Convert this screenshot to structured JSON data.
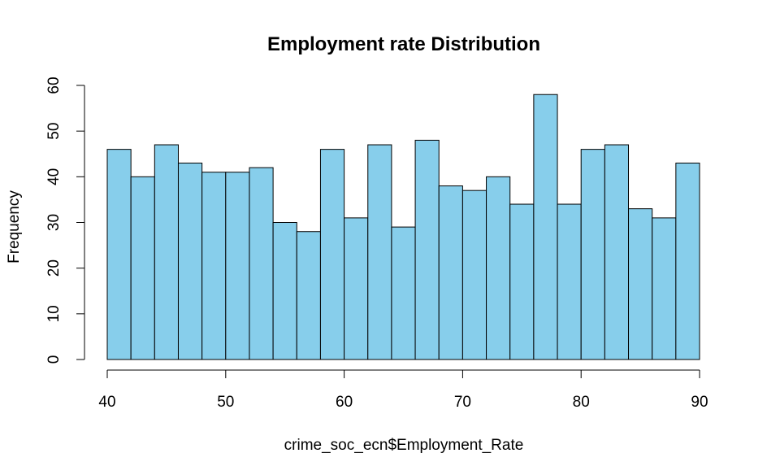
{
  "chart_data": {
    "type": "bar",
    "subtype": "histogram",
    "title": "Employment rate Distribution",
    "xlabel": "crime_soc_ecn$Employment_Rate",
    "ylabel": "Frequency",
    "bin_edges": [
      40,
      42,
      44,
      46,
      48,
      50,
      52,
      54,
      56,
      58,
      60,
      62,
      64,
      66,
      68,
      70,
      72,
      74,
      76,
      78,
      80,
      82,
      84,
      86,
      88,
      90
    ],
    "values": [
      46,
      40,
      47,
      43,
      41,
      41,
      42,
      30,
      28,
      46,
      31,
      47,
      29,
      48,
      38,
      37,
      40,
      34,
      58,
      34,
      46,
      47,
      33,
      31,
      43
    ],
    "xlim": [
      40,
      90
    ],
    "ylim": [
      0,
      60
    ],
    "xticks": [
      40,
      50,
      60,
      70,
      80,
      90
    ],
    "yticks": [
      0,
      10,
      20,
      30,
      40,
      50,
      60
    ],
    "bar_color": "#87CEEB",
    "grid": false,
    "legend": "none"
  }
}
